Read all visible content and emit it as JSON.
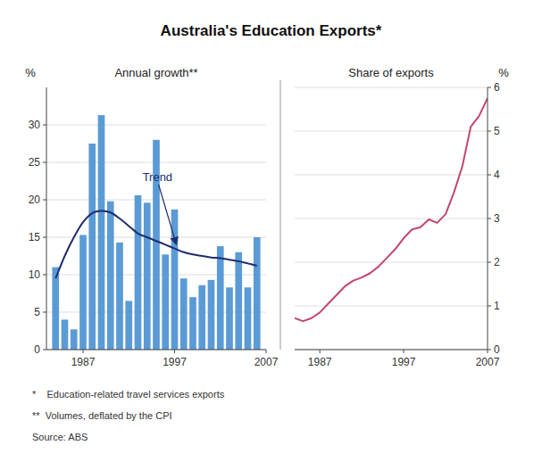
{
  "chart_data": [
    {
      "type": "bar",
      "title": "Australia's Education Exports*",
      "subtitle": "Annual growth**",
      "y_label": "%",
      "x": [
        1984,
        1985,
        1986,
        1987,
        1988,
        1989,
        1990,
        1991,
        1992,
        1993,
        1994,
        1995,
        1996,
        1997,
        1998,
        1999,
        2000,
        2001,
        2002,
        2003,
        2004,
        2005,
        2006
      ],
      "series": [
        {
          "type": "bar",
          "color": "#5b9bd5",
          "values": [
            11.0,
            4.0,
            2.7,
            15.3,
            27.5,
            31.3,
            19.8,
            14.3,
            6.5,
            20.6,
            19.6,
            28.0,
            12.7,
            18.7,
            9.5,
            7.0,
            8.6,
            9.3,
            13.8,
            8.3,
            13.0,
            8.3,
            15.0
          ]
        },
        {
          "type": "line",
          "color": "#1f2d6e",
          "line_style": "smooth",
          "values": [
            9.5,
            12.5,
            15.0,
            17.0,
            18.2,
            18.5,
            18.3,
            17.5,
            16.5,
            15.5,
            15.0,
            14.5,
            14.0,
            13.5,
            13.0,
            12.7,
            12.5,
            12.3,
            12.2,
            12.0,
            11.8,
            11.5,
            11.2
          ]
        }
      ],
      "xlim": [
        1983.0,
        2007.0
      ],
      "xticks": [
        1987,
        1997,
        2007
      ],
      "ylim": [
        0,
        35
      ],
      "yticks": [
        0,
        5,
        10,
        15,
        20,
        25,
        30
      ],
      "grid": true,
      "annotations": [
        {
          "text": "Trend",
          "x": 1993.5,
          "y": 22.5,
          "arrow_x": 1997.2,
          "arrow_y": 14.0,
          "color": "#1f2d6e"
        }
      ],
      "footnotes": [
        "*    Education-related travel services exports",
        "**  Volumes, deflated by the CPI",
        "Source: ABS"
      ]
    },
    {
      "type": "line",
      "subtitle": "Share of exports",
      "y_label": "%",
      "x": [
        1984,
        1985,
        1986,
        1987,
        1988,
        1989,
        1990,
        1991,
        1992,
        1993,
        1994,
        1995,
        1996,
        1997,
        1998,
        1999,
        2000,
        2001,
        2002,
        2003,
        2004,
        2005,
        2006,
        2007
      ],
      "series": [
        {
          "color": "#c0476e",
          "values": [
            0.72,
            0.65,
            0.72,
            0.85,
            1.05,
            1.25,
            1.45,
            1.58,
            1.65,
            1.75,
            1.9,
            2.1,
            2.3,
            2.55,
            2.75,
            2.8,
            2.98,
            2.9,
            3.1,
            3.6,
            4.2,
            5.1,
            5.35,
            5.75
          ]
        }
      ],
      "xlim": [
        1984.0,
        2007.0
      ],
      "xticks": [
        1987,
        1997,
        2007
      ],
      "ylim": [
        0,
        6
      ],
      "yticks": [
        0,
        1,
        2,
        3,
        4,
        5,
        6
      ],
      "grid": true
    }
  ]
}
